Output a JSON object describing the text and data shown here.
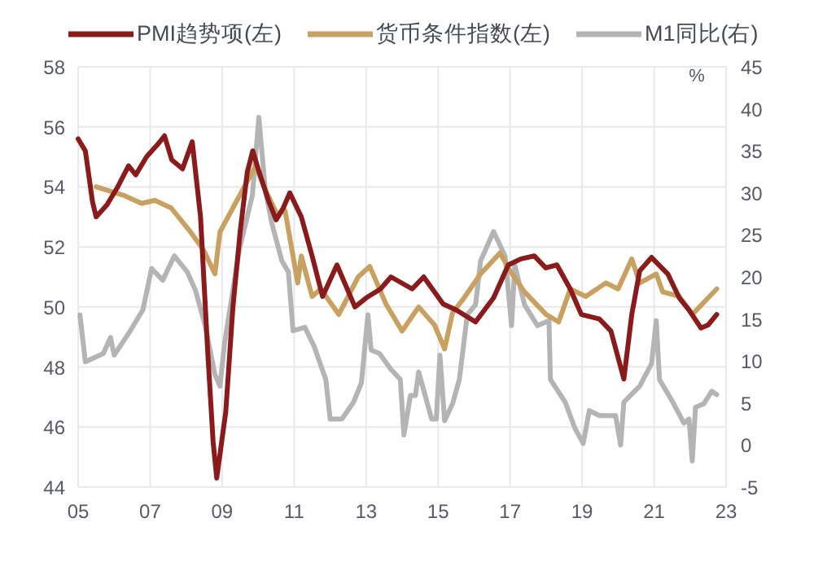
{
  "chart_data": {
    "type": "line",
    "xlim": [
      2005,
      2023
    ],
    "xticks": [
      {
        "value": 2005,
        "label": "05"
      },
      {
        "value": 2007,
        "label": "07"
      },
      {
        "value": 2009,
        "label": "09"
      },
      {
        "value": 2011,
        "label": "11"
      },
      {
        "value": 2013,
        "label": "13"
      },
      {
        "value": 2015,
        "label": "15"
      },
      {
        "value": 2017,
        "label": "17"
      },
      {
        "value": 2019,
        "label": "19"
      },
      {
        "value": 2021,
        "label": "21"
      },
      {
        "value": 2023,
        "label": "23"
      }
    ],
    "ylim": [
      44,
      58
    ],
    "yticks": [
      44,
      46,
      48,
      50,
      52,
      54,
      56,
      58
    ],
    "y2lim": [
      -5,
      45
    ],
    "y2ticks": [
      -5,
      0,
      5,
      10,
      15,
      20,
      25,
      30,
      35,
      40,
      45
    ],
    "y2label": "%",
    "grid": true,
    "legend": "top",
    "line_style": "solid",
    "series": [
      {
        "name": "PMI趋势项(左)",
        "color": "#8b1a1a",
        "x": [
          2005.0,
          2005.2,
          2005.4,
          2005.5,
          2005.8,
          2006.1,
          2006.4,
          2006.6,
          2006.9,
          2007.2,
          2007.4,
          2007.6,
          2007.9,
          2008.17,
          2008.4,
          2008.6,
          2008.75,
          2008.85,
          2009.1,
          2009.3,
          2009.5,
          2009.7,
          2009.85,
          2010.0,
          2010.3,
          2010.5,
          2010.7,
          2010.88,
          2011.2,
          2011.5,
          2011.79,
          2012.19,
          2012.69,
          2013.0,
          2013.4,
          2013.69,
          2014.28,
          2014.6,
          2015.14,
          2015.5,
          2016.04,
          2016.54,
          2016.95,
          2017.3,
          2017.67,
          2017.99,
          2018.3,
          2018.67,
          2018.98,
          2019.48,
          2019.8,
          2020.16,
          2020.38,
          2020.6,
          2020.93,
          2021.38,
          2021.7,
          2021.97,
          2022.3,
          2022.5,
          2022.74
        ],
        "values": [
          55.6,
          55.2,
          53.5,
          53.0,
          53.4,
          54.0,
          54.7,
          54.4,
          55.0,
          55.4,
          55.7,
          54.9,
          54.6,
          55.5,
          53.0,
          48.5,
          45.5,
          44.3,
          46.5,
          50.0,
          52.5,
          54.5,
          55.2,
          54.6,
          53.5,
          52.9,
          53.3,
          53.8,
          53.0,
          51.7,
          50.35,
          51.4,
          50.0,
          50.3,
          50.6,
          51.0,
          50.6,
          51.0,
          50.1,
          49.9,
          49.5,
          50.3,
          51.4,
          51.6,
          51.7,
          51.3,
          51.4,
          50.6,
          49.75,
          49.6,
          49.2,
          47.6,
          49.75,
          51.2,
          51.65,
          51.1,
          50.3,
          49.9,
          49.3,
          49.4,
          49.75
        ]
      },
      {
        "name": "货币条件指数(左)",
        "color": "#c8a060",
        "x": [
          2005.5,
          2006.3,
          2006.76,
          2007.13,
          2007.58,
          2008.12,
          2008.48,
          2008.8,
          2008.94,
          2009.48,
          2009.93,
          2010.2,
          2010.52,
          2010.75,
          2011.1,
          2011.2,
          2011.5,
          2011.74,
          2012.24,
          2012.78,
          2013.1,
          2013.55,
          2014.0,
          2014.46,
          2014.9,
          2015.18,
          2015.4,
          2015.72,
          2016.18,
          2016.72,
          2017.0,
          2017.4,
          2018.0,
          2018.35,
          2018.67,
          2019.1,
          2019.66,
          2020.0,
          2020.38,
          2020.6,
          2021.06,
          2021.24,
          2021.7,
          2022.06,
          2022.42,
          2022.74
        ],
        "values": [
          54.0,
          53.7,
          53.45,
          53.55,
          53.3,
          52.5,
          51.9,
          51.1,
          52.5,
          53.7,
          54.7,
          53.9,
          53.1,
          53.2,
          50.8,
          51.7,
          50.35,
          50.6,
          49.75,
          51.0,
          51.35,
          50.1,
          49.2,
          50.0,
          49.4,
          48.6,
          49.8,
          50.3,
          51.1,
          51.8,
          51.2,
          50.5,
          49.75,
          49.5,
          50.6,
          50.35,
          50.8,
          50.6,
          51.6,
          50.8,
          51.1,
          50.5,
          50.35,
          49.75,
          50.2,
          50.6
        ]
      },
      {
        "name": "M1同比(右)",
        "color": "#b4b4b4",
        "axis": "y2",
        "x": [
          2005.05,
          2005.2,
          2005.7,
          2005.9,
          2006.0,
          2006.45,
          2006.8,
          2007.04,
          2007.35,
          2007.67,
          2008.03,
          2008.26,
          2008.53,
          2008.8,
          2008.94,
          2009.07,
          2009.48,
          2009.84,
          2010.02,
          2010.2,
          2010.38,
          2010.66,
          2010.84,
          2010.97,
          2011.3,
          2011.56,
          2011.88,
          2012.0,
          2012.33,
          2012.65,
          2012.87,
          2013.05,
          2013.14,
          2013.37,
          2013.69,
          2013.95,
          2014.05,
          2014.23,
          2014.37,
          2014.46,
          2014.82,
          2014.95,
          2015.05,
          2015.18,
          2015.4,
          2015.59,
          2015.81,
          2016.04,
          2016.18,
          2016.54,
          2016.86,
          2017.04,
          2017.13,
          2017.4,
          2017.76,
          2018.08,
          2018.12,
          2018.53,
          2018.8,
          2019.03,
          2019.2,
          2019.48,
          2019.93,
          2020.07,
          2020.16,
          2020.6,
          2020.93,
          2021.06,
          2021.15,
          2021.52,
          2021.83,
          2021.97,
          2022.06,
          2022.15,
          2022.38,
          2022.6,
          2022.74
        ],
        "values": [
          15.5,
          9.9,
          10.9,
          12.8,
          10.7,
          13.6,
          16.1,
          21.0,
          19.6,
          22.5,
          20.6,
          18.4,
          14.2,
          8.4,
          7.0,
          12.2,
          23.3,
          29.7,
          39.0,
          30.3,
          26.4,
          21.9,
          20.6,
          13.6,
          14.0,
          11.7,
          7.8,
          3.1,
          3.1,
          5.1,
          7.4,
          15.5,
          11.3,
          10.9,
          9.0,
          7.8,
          1.2,
          5.9,
          5.9,
          8.7,
          3.1,
          3.1,
          10.7,
          2.9,
          4.9,
          7.8,
          15.5,
          16.7,
          21.9,
          25.4,
          22.5,
          14.2,
          21.4,
          16.7,
          14.2,
          14.8,
          7.8,
          5.1,
          2.0,
          0.2,
          4.1,
          3.5,
          3.5,
          0.0,
          5.1,
          7.0,
          9.7,
          14.8,
          7.8,
          5.1,
          2.6,
          3.1,
          -1.9,
          4.5,
          4.9,
          6.4,
          6.0
        ]
      }
    ]
  }
}
